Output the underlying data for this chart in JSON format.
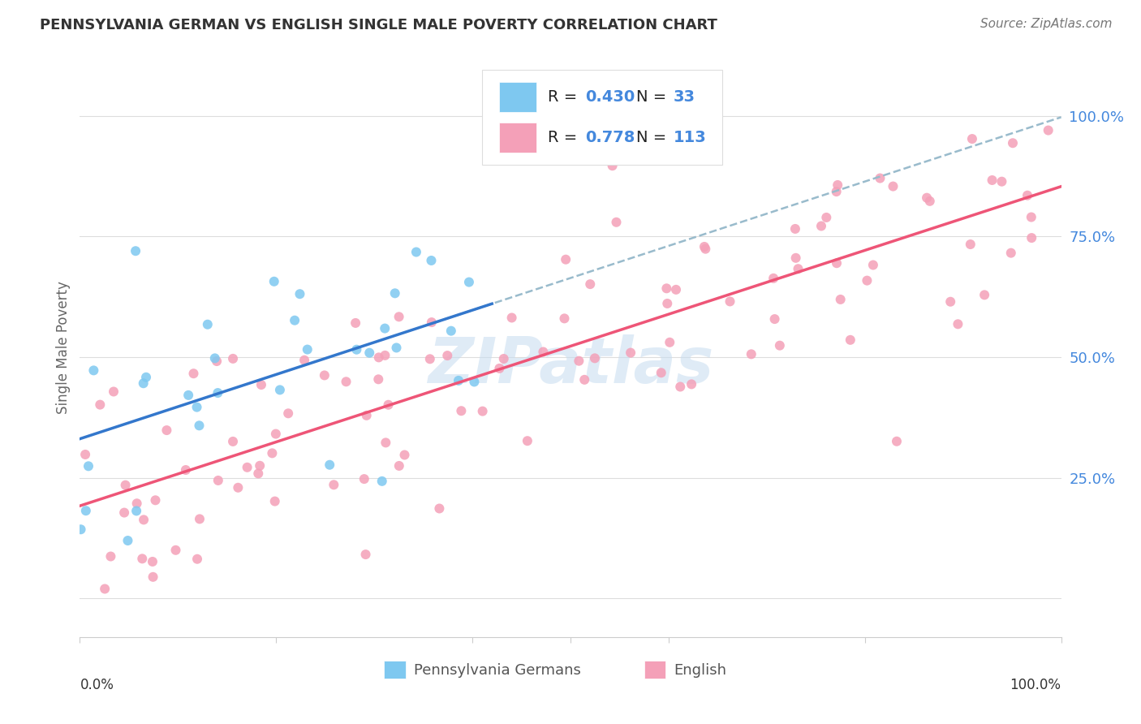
{
  "title": "PENNSYLVANIA GERMAN VS ENGLISH SINGLE MALE POVERTY CORRELATION CHART",
  "source": "Source: ZipAtlas.com",
  "ylabel": "Single Male Poverty",
  "watermark": "ZIPatlas",
  "legend_r1": "0.430",
  "legend_n1": "33",
  "legend_r2": "0.778",
  "legend_n2": "113",
  "xlim": [
    0.0,
    1.0
  ],
  "ylim": [
    -0.08,
    1.12
  ],
  "color_blue": "#7EC8F0",
  "color_pink": "#F4A0B8",
  "color_line_blue": "#3377CC",
  "color_line_pink": "#EE5577",
  "color_line_dashed": "#99BBCC",
  "background_color": "#FFFFFF",
  "grid_color": "#DDDDDD",
  "title_color": "#333333",
  "right_tick_color": "#4488DD",
  "seed_pg": 12,
  "seed_en": 42,
  "N_pg": 33,
  "N_en": 113,
  "R_pg": 0.43,
  "R_en": 0.778
}
